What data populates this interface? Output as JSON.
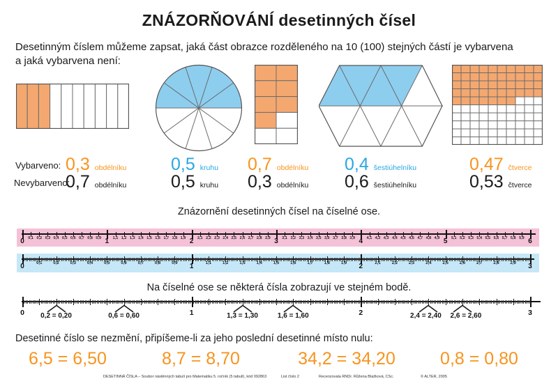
{
  "title": "ZNÁZORŇOVÁNÍ desetinných čísel",
  "intro_line1": "Desetinným číslem můžeme zapsat, jaká část obrazce rozděleného na 10 (100) stejných částí je vybarvena",
  "intro_line2": "a jaká vybarvena není:",
  "row_labels": {
    "filled": "Vybarveno:",
    "unfilled": "Nevybarveno:"
  },
  "figures": [
    {
      "name": "rectangle-strips",
      "type": "strips",
      "total": 10,
      "filled": 3,
      "filled_value": "0,3",
      "unfilled_value": "0,7",
      "unit": "obdélníku",
      "color_key": "orange"
    },
    {
      "name": "circle-sectors",
      "type": "circle",
      "total": 10,
      "filled": 5,
      "filled_value": "0,5",
      "unfilled_value": "0,5",
      "unit": "kruhu",
      "color_key": "blue"
    },
    {
      "name": "rectangle-grid-2x5",
      "type": "grid",
      "cols": 2,
      "rows": 5,
      "filled": 7,
      "filled_value": "0,7",
      "unfilled_value": "0,3",
      "unit": "obdélníku",
      "color_key": "orange"
    },
    {
      "name": "hexagon-triangles",
      "type": "hexagon",
      "total": 10,
      "filled": 4,
      "filled_value": "0,4",
      "unfilled_value": "0,6",
      "unit": "šestiúhelníku",
      "color_key": "blue"
    },
    {
      "name": "square-grid-10x10",
      "type": "grid",
      "cols": 10,
      "rows": 10,
      "filled": 47,
      "filled_value": "0,47",
      "unfilled_value": "0,53",
      "unit": "čtverce",
      "color_key": "orange"
    }
  ],
  "section_axis_title": "Znázornění desetinných čísel na číselné ose.",
  "section_samepoint_title": "Na číselné ose se některá čísla zobrazují ve stejném bodě.",
  "section_zero_title": "Desetinné číslo se nezmění, připíšeme-li za jeho poslední desetinné místo nulu:",
  "equations": [
    "6,5 = 6,50",
    "8,7 = 8,70",
    "34,2 = 34,20",
    "0,8 = 0,80"
  ],
  "chart_data": [
    {
      "type": "number-line",
      "band": "pink",
      "range": [
        0,
        6
      ],
      "major_step": 1,
      "minor_step": 0.1,
      "minor_labels": true,
      "micro_step": null,
      "label_format": "comma-decimal"
    },
    {
      "type": "number-line",
      "band": "blue",
      "range": [
        0,
        3
      ],
      "major_step": 1,
      "minor_step": 0.1,
      "minor_labels": true,
      "micro_step": 0.01,
      "label_format": "comma-decimal"
    },
    {
      "type": "number-line",
      "band": "white",
      "range": [
        0,
        3
      ],
      "major_step": 1,
      "minor_step": 0.1,
      "minor_labels": false,
      "micro_step": 0.01,
      "label_format": "comma-decimal",
      "annotations": [
        {
          "pos": 0.2,
          "label": "0,2 = 0,20"
        },
        {
          "pos": 0.6,
          "label": "0,6 = 0,60"
        },
        {
          "pos": 1.3,
          "label": "1,3 = 1,30"
        },
        {
          "pos": 1.6,
          "label": "1,6 = 1,60"
        },
        {
          "pos": 2.4,
          "label": "2,4 = 2,40"
        },
        {
          "pos": 2.6,
          "label": "2,6 = 2,60"
        }
      ]
    }
  ],
  "footer": {
    "left": "DESETINNÁ ČÍSLA – Soubor nástěnných tabulí pro Matematiku 5. ročník (5 tabulí), kód 092863",
    "sheet": "List číslo 2",
    "reviewer": "Recenzovala RNDr. Růžena Blažková, CSc.",
    "copyright": "© ALTER, 2005"
  },
  "colors": {
    "orange_text": "#F7941E",
    "orange_fill": "#F4A870",
    "blue_text": "#29A8E0",
    "blue_fill": "#8DCEEF",
    "pink_band": "#F5C1D6",
    "blue_band": "#C6E7F7",
    "outline": "#6b6b6b",
    "axis": "#111111"
  }
}
